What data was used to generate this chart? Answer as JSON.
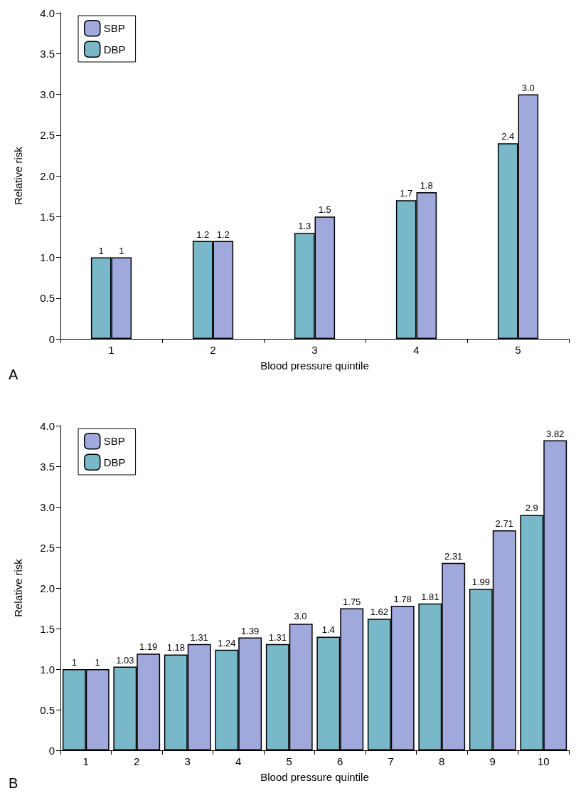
{
  "chart_data": [
    {
      "type": "bar",
      "xlabel": "Blood pressure quintile",
      "ylabel": "Relative risk",
      "annotations": [
        "A"
      ],
      "categories": [
        "1",
        "2",
        "3",
        "4",
        "5"
      ],
      "series": [
        {
          "name": "DBP",
          "color": "#78b8c8",
          "values": [
            1,
            1.2,
            1.3,
            1.7,
            2.4
          ],
          "value_labels": [
            "1",
            "1.2",
            "1.3",
            "1.7",
            "2.4"
          ]
        },
        {
          "name": "SBP",
          "color": "#a0a8dc",
          "values": [
            1,
            1.2,
            1.5,
            1.8,
            3.0
          ],
          "value_labels": [
            "1",
            "1.2",
            "1.5",
            "1.8",
            "3.0"
          ]
        }
      ],
      "ylim": [
        0,
        4
      ],
      "yticks": [
        0,
        0.5,
        {
          "value": 1,
          "label": "1.0"
        },
        1.5,
        {
          "value": 2,
          "label": "2.0"
        },
        2.5,
        {
          "value": 3,
          "label": "3.0"
        },
        3.5,
        {
          "value": 4,
          "label": "4.0"
        }
      ],
      "grid": false,
      "legend": "top left"
    },
    {
      "type": "bar",
      "xlabel": "Blood pressure quintile",
      "ylabel": "Relative risk",
      "annotations": [
        "B",
        {
          "text": "3.0",
          "x": "5",
          "y": 1.56
        }
      ],
      "categories": [
        "1",
        "2",
        "3",
        "4",
        "5",
        "6",
        "7",
        "8",
        "9",
        "10"
      ],
      "series": [
        {
          "name": "DBP",
          "color": "#78b8c8",
          "values": [
            1,
            1.03,
            1.18,
            1.24,
            1.31,
            1.4,
            1.62,
            1.81,
            1.99,
            2.9
          ],
          "value_labels": [
            "1",
            "1.03",
            "1.18",
            "1.24",
            "1.31",
            "1.4",
            "1.62",
            "1.81",
            "1.99",
            "2.9"
          ]
        },
        {
          "name": "SBP",
          "color": "#a0a8dc",
          "values": [
            1,
            1.19,
            1.31,
            1.39,
            1.56,
            1.75,
            1.78,
            2.31,
            2.71,
            3.82
          ],
          "value_labels": [
            "1",
            "1.19",
            "1.31",
            "1.39",
            null,
            "1.75",
            "1.78",
            "2.31",
            "2.71",
            "3.82"
          ]
        }
      ],
      "ylim": [
        0,
        4
      ],
      "yticks": [
        0,
        0.5,
        {
          "value": 1,
          "label": "1.0"
        },
        1.5,
        {
          "value": 2,
          "label": "2.0"
        },
        2.5,
        {
          "value": 3,
          "label": "3.0"
        },
        3.5,
        {
          "value": 4,
          "label": "4.0"
        }
      ],
      "grid": false,
      "legend": "top left"
    }
  ]
}
